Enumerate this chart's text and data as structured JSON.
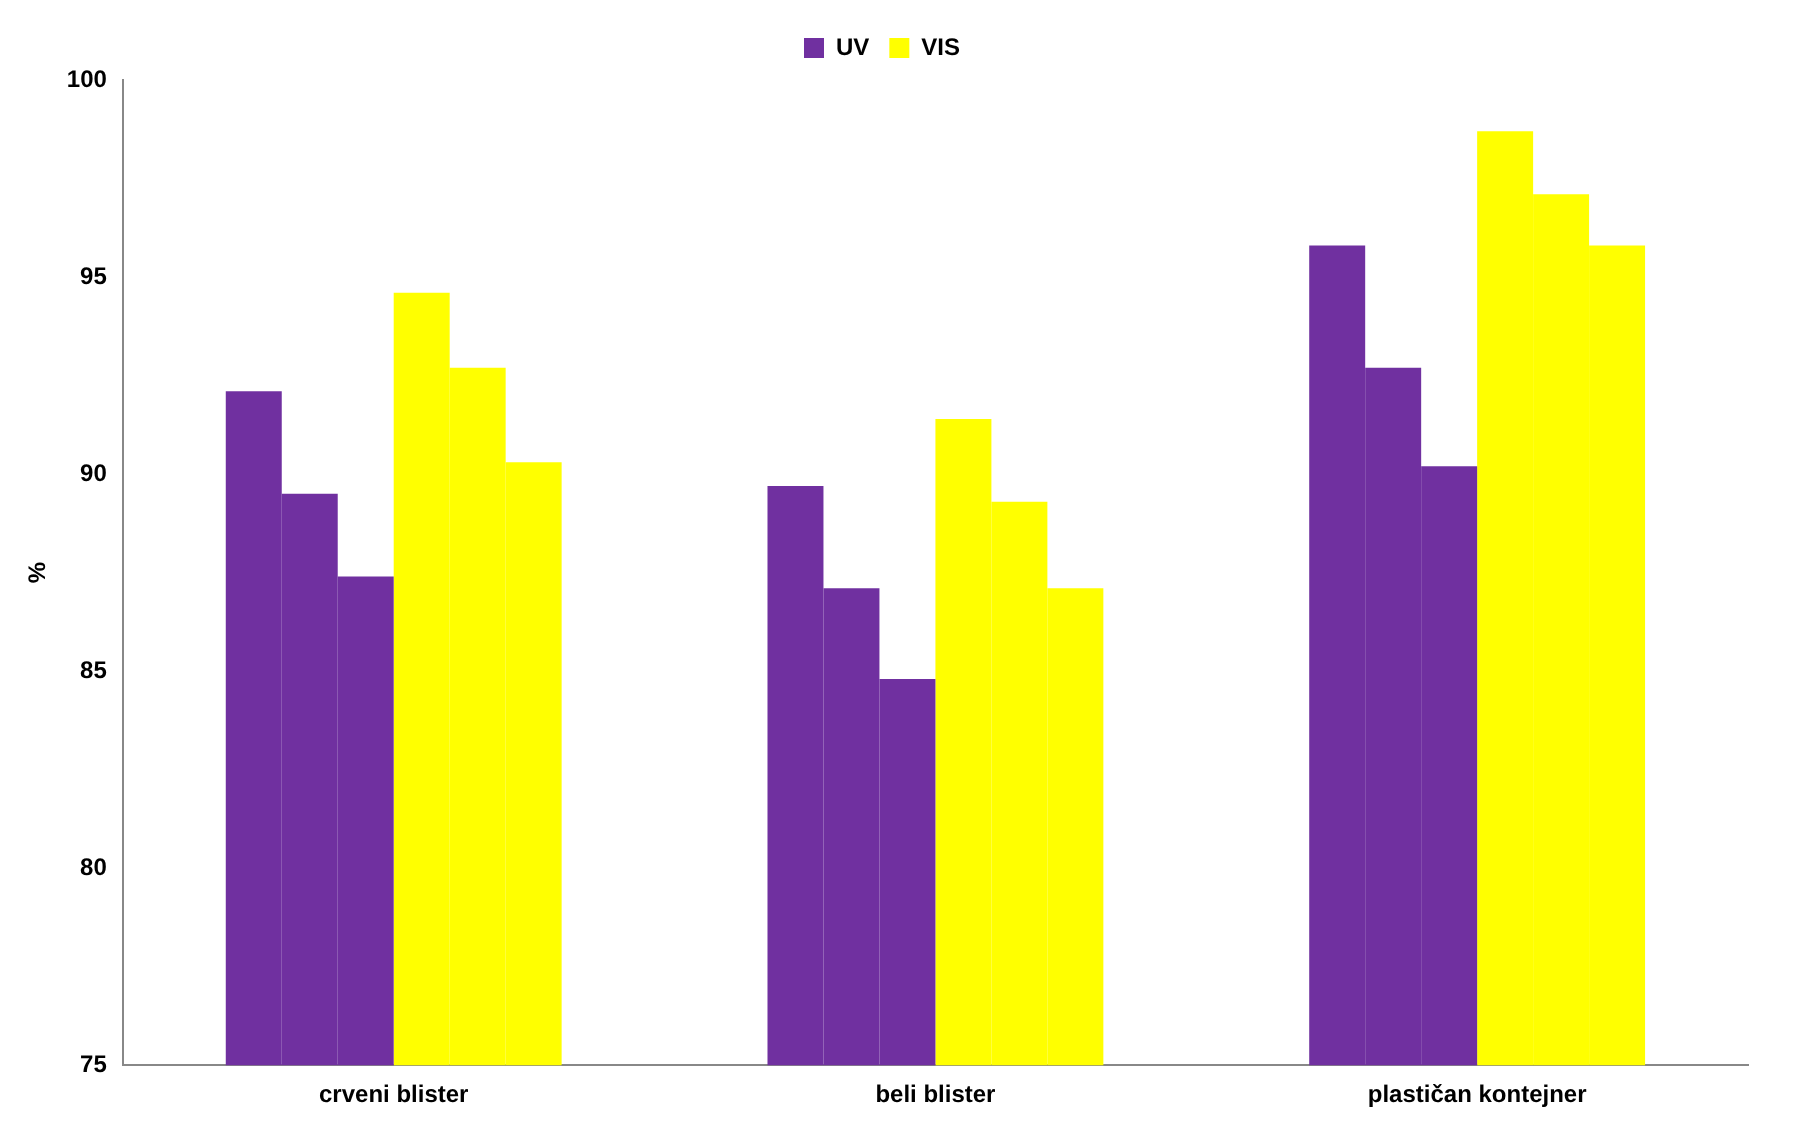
{
  "chart_data": {
    "type": "bar",
    "ylabel": "%",
    "categories": [
      "crveni blister",
      "beli blister",
      "plastičan kontejner"
    ],
    "series": [
      {
        "name": "UV",
        "color": "#7030a0",
        "values": [
          92.1,
          89.7,
          95.8
        ]
      },
      {
        "color": "#7030a0",
        "values": [
          89.5,
          87.1,
          92.7
        ]
      },
      {
        "color": "#7030a0",
        "values": [
          87.4,
          84.8,
          90.2
        ]
      },
      {
        "name": "VIS",
        "color": "#ffff00",
        "values": [
          94.6,
          91.4,
          98.7
        ]
      },
      {
        "color": "#ffff00",
        "values": [
          92.7,
          89.3,
          97.1
        ]
      },
      {
        "color": "#ffff00",
        "values": [
          90.3,
          87.1,
          95.8
        ]
      }
    ],
    "ylim": [
      75,
      100
    ],
    "yticks": [
      75,
      80,
      85,
      90,
      95,
      100
    ],
    "grid": false,
    "legend": "top"
  }
}
